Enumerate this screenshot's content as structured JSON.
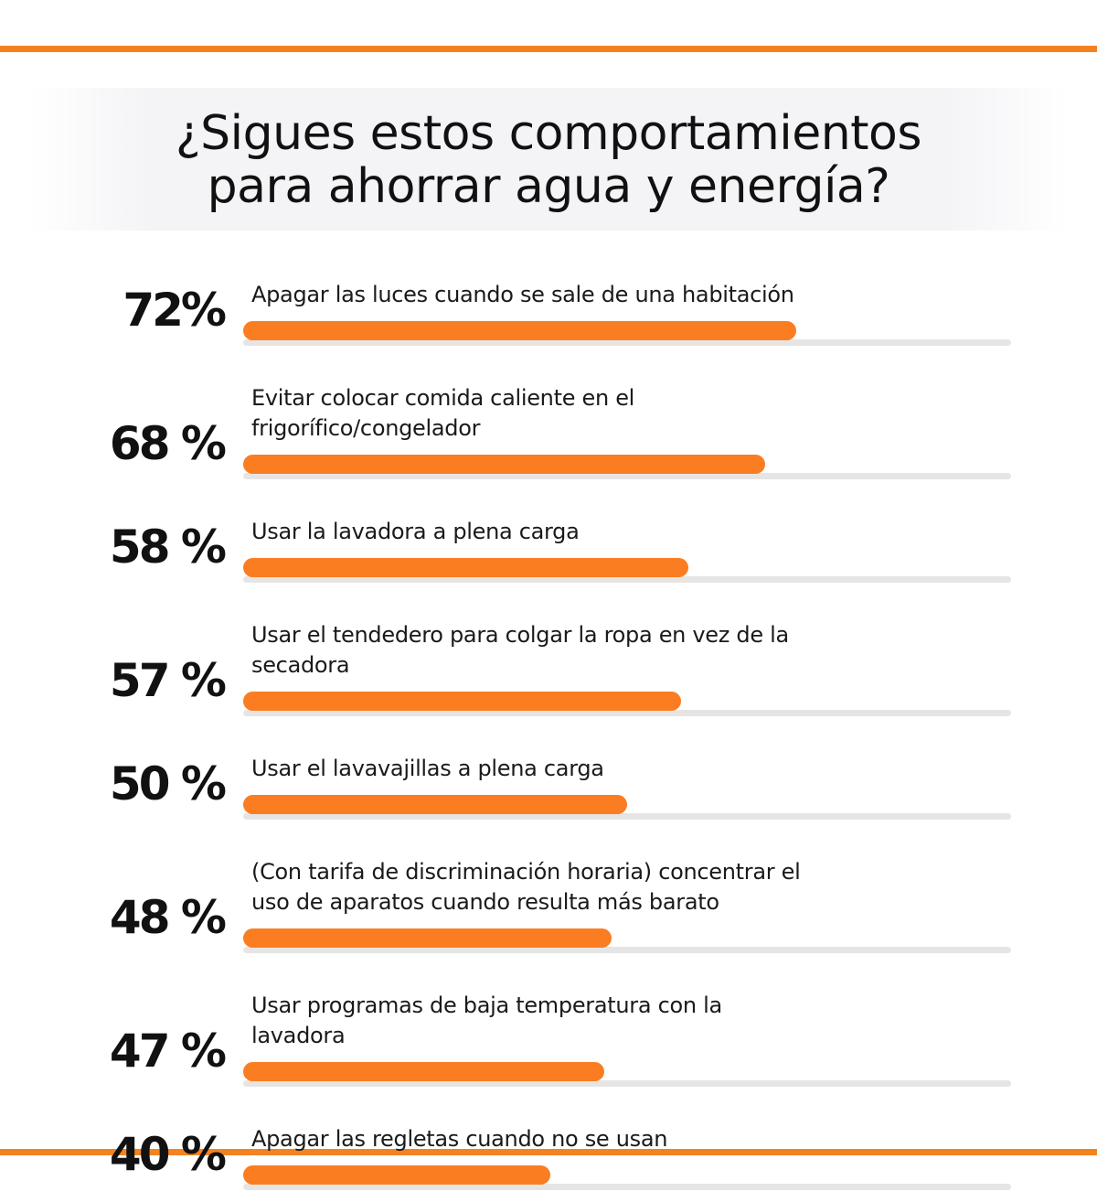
{
  "chart_data": {
    "type": "bar",
    "orientation": "horizontal",
    "title": [
      "¿Sigues estos comportamientos",
      "para ahorrar agua y energía?"
    ],
    "categories": [
      "Apagar las luces cuando se sale de una habitación",
      "Evitar colocar comida caliente en el frigorífico/congelador",
      "Usar la lavadora a plena carga",
      "Usar el tendedero para colgar la ropa en vez de la secadora",
      "Usar el lavavajillas a plena carga",
      "(Con tarifa de discriminación horaria) concentrar el uso de aparatos cuando resulta más barato",
      "Usar programas de baja temperatura con la lavadora",
      "Apagar las regletas cuando no se usan"
    ],
    "values": [
      72,
      68,
      58,
      57,
      50,
      48,
      47,
      40
    ],
    "value_labels": [
      "72%",
      "68 %",
      "58 %",
      "57 %",
      "50 %",
      "48 %",
      "47 %",
      "40 %"
    ],
    "xlim": [
      0,
      100
    ],
    "color": "#fb7d22",
    "track_color": "#e7e5e3"
  }
}
